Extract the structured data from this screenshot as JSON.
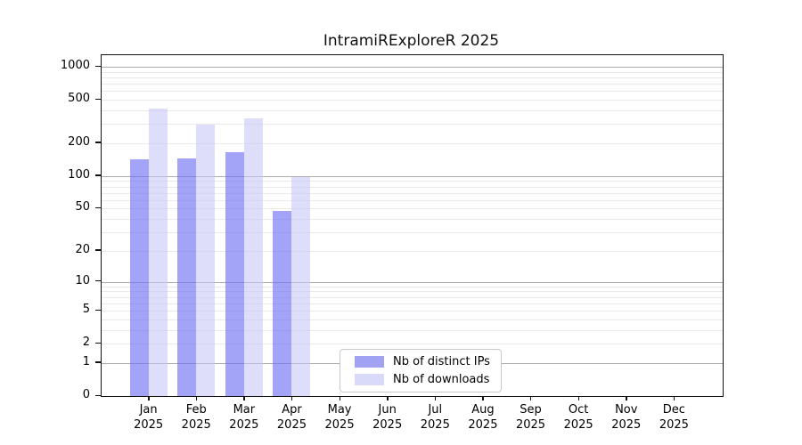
{
  "title": "IntramiRExploreR 2025",
  "chart_data": {
    "type": "bar",
    "categories": [
      "Jan",
      "Feb",
      "Mar",
      "Apr",
      "May",
      "Jun",
      "Jul",
      "Aug",
      "Sep",
      "Oct",
      "Nov",
      "Dec"
    ],
    "year_label": "2025",
    "series": [
      {
        "name": "Nb of distinct IPs",
        "values": [
          142,
          145,
          167,
          48,
          0,
          0,
          0,
          0,
          0,
          0,
          0,
          0
        ]
      },
      {
        "name": "Nb of downloads",
        "values": [
          415,
          297,
          337,
          97,
          0,
          0,
          0,
          0,
          0,
          0,
          0,
          0
        ]
      }
    ],
    "title": "IntramiRExploreR 2025",
    "xlabel": "",
    "ylabel": "",
    "yscale": "log1p",
    "yticks": [
      0,
      1,
      2,
      5,
      10,
      20,
      50,
      100,
      200,
      500,
      1000
    ],
    "major_gridlines": [
      1,
      10,
      100,
      1000
    ],
    "ylim": [
      0,
      1276
    ],
    "grid": "horizontal",
    "legend_position": "inside-bottom-center"
  },
  "legend": {
    "items": [
      {
        "label": "Nb of distinct IPs"
      },
      {
        "label": "Nb of downloads"
      }
    ]
  },
  "colors": {
    "ips_bar": "rgba(110,110,242,0.63)",
    "downloads_bar": "rgba(197,197,247,0.57)",
    "ips_swatch": "#a2a2f2",
    "downloads_swatch": "#d9d9f9",
    "grid_major": "#ababab",
    "grid_minor": "#e9e9e9",
    "axis": "#111111"
  }
}
